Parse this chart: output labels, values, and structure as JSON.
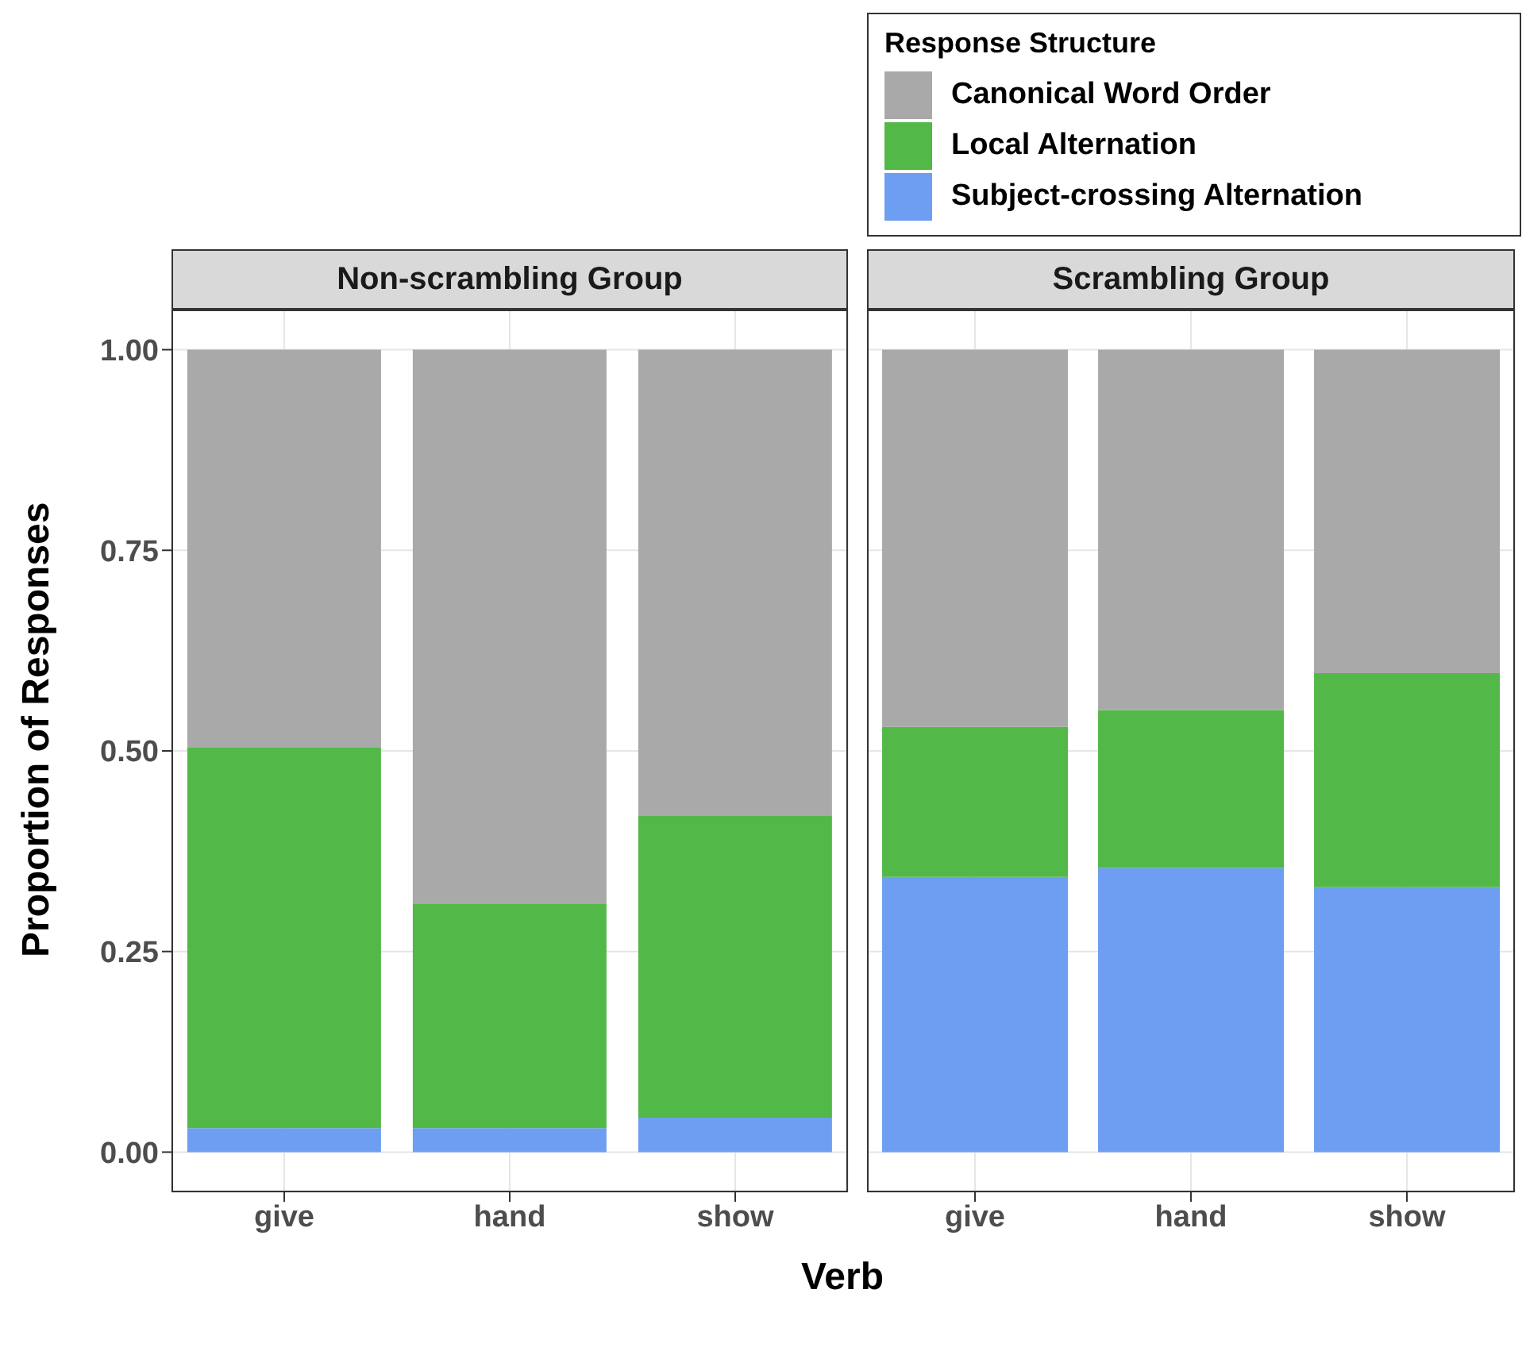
{
  "chart_data": [
    {
      "type": "bar",
      "title": "Non-scrambling Group",
      "xlabel": "Verb",
      "ylabel": "Proportion of Responses",
      "categories": [
        "give",
        "hand",
        "show"
      ],
      "stacked": true,
      "grid": true,
      "legend": false,
      "series": [
        {
          "color": "#6d9ef2",
          "values": [
            0.03,
            0.03,
            0.043
          ]
        },
        {
          "color": "#52b848",
          "values": [
            0.474,
            0.279,
            0.376
          ]
        },
        {
          "color": "#a9a9a9",
          "values": [
            0.496,
            0.691,
            0.581
          ]
        }
      ],
      "ylim": [
        -0.05,
        1.05
      ],
      "yticks": [
        {
          "value": 0,
          "label": "0.00"
        },
        {
          "value": 0.25,
          "label": "0.25"
        },
        {
          "value": 0.5,
          "label": "0.50"
        },
        {
          "value": 0.75,
          "label": "0.75"
        },
        {
          "value": 1,
          "label": "1.00"
        }
      ]
    },
    {
      "type": "bar",
      "title": "Scrambling Group",
      "legend_title": "Response Structure",
      "categories": [
        "give",
        "hand",
        "show"
      ],
      "stacked": true,
      "grid": true,
      "legend": "top",
      "tick_labels": "x",
      "series": [
        {
          "name": "Subject-crossing Alternation",
          "color": "#6d9ef2",
          "values": [
            0.343,
            0.354,
            0.33
          ]
        },
        {
          "name": "Local Alternation",
          "color": "#52b848",
          "values": [
            0.187,
            0.197,
            0.267
          ]
        },
        {
          "name": "Canonical Word Order",
          "color": "#a9a9a9",
          "values": [
            0.47,
            0.449,
            0.403
          ]
        }
      ],
      "ylim": [
        -0.05,
        1.05
      ],
      "yticks": [
        0,
        0.25,
        0.5,
        0.75,
        1
      ]
    }
  ]
}
